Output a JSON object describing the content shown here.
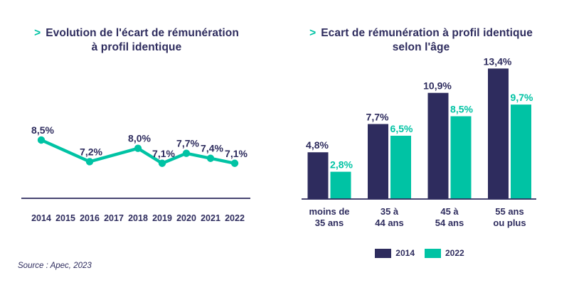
{
  "colors": {
    "navy": "#2e2c5e",
    "teal": "#00c3a4",
    "background": "#ffffff"
  },
  "source": "Source : Apec, 2023",
  "line_chart_header": {
    "chevron": ">",
    "title_line1": "Evolution de l'écart de rémunération",
    "title_line2": "à profil identique"
  },
  "bar_chart_header": {
    "chevron": ">",
    "title_line1": "Ecart de rémunération à profil identique",
    "title_line2": "selon l'âge"
  },
  "chart_data": [
    {
      "type": "line",
      "title": "Evolution de l'écart de rémunération à profil identique",
      "x_axis_years": [
        "2014",
        "2015",
        "2016",
        "2017",
        "2018",
        "2019",
        "2020",
        "2021",
        "2022"
      ],
      "points": [
        {
          "year": "2014",
          "value": 8.5,
          "label": "8,5%"
        },
        {
          "year": "2016",
          "value": 7.2,
          "label": "7,2%"
        },
        {
          "year": "2018",
          "value": 8.0,
          "label": "8,0%"
        },
        {
          "year": "2019",
          "value": 7.1,
          "label": "7,1%"
        },
        {
          "year": "2020",
          "value": 7.7,
          "label": "7,7%"
        },
        {
          "year": "2021",
          "value": 7.4,
          "label": "7,4%"
        },
        {
          "year": "2022",
          "value": 7.1,
          "label": "7,1%"
        }
      ],
      "unit": "%",
      "grid": false,
      "axis": "bottom-only",
      "line_color": "#00c3a4",
      "label_color": "#2e2c5e"
    },
    {
      "type": "bar",
      "title": "Ecart de rémunération à profil identique selon l'âge",
      "categories": [
        {
          "line1": "moins de",
          "line2": "35 ans"
        },
        {
          "line1": "35 à",
          "line2": "44 ans"
        },
        {
          "line1": "45 à",
          "line2": "54 ans"
        },
        {
          "line1": "55 ans",
          "line2": "ou plus"
        }
      ],
      "series": [
        {
          "name": "2014",
          "color": "#2e2c5e",
          "values": [
            4.8,
            7.7,
            10.9,
            13.4
          ],
          "labels": [
            "4,8%",
            "7,7%",
            "10,9%",
            "13,4%"
          ]
        },
        {
          "name": "2022",
          "color": "#00c3a4",
          "values": [
            2.8,
            6.5,
            8.5,
            9.7
          ],
          "labels": [
            "2,8%",
            "6,5%",
            "8,5%",
            "9,7%"
          ]
        }
      ],
      "unit": "%",
      "grid": false,
      "legend_position": "bottom"
    }
  ]
}
